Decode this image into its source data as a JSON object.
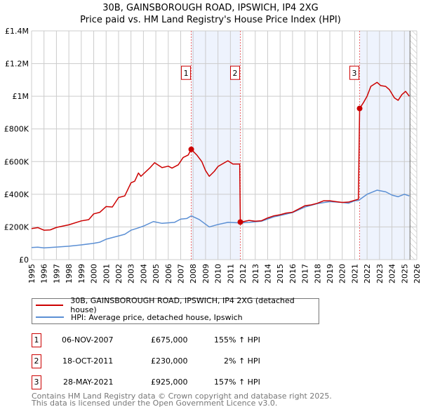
{
  "chart_data": {
    "type": "line",
    "title": "30B, GAINSBOROUGH ROAD, IPSWICH, IP4 2XG",
    "subtitle": "Price paid vs. HM Land Registry's House Price Index (HPI)",
    "xlim": [
      1995,
      2026
    ],
    "ylim": [
      0,
      1400000
    ],
    "x_ticks": [
      "1995",
      "1996",
      "1997",
      "1998",
      "1999",
      "2000",
      "2001",
      "2002",
      "2003",
      "2004",
      "2005",
      "2006",
      "2007",
      "2008",
      "2009",
      "2010",
      "2011",
      "2012",
      "2013",
      "2014",
      "2015",
      "2016",
      "2017",
      "2018",
      "2019",
      "2020",
      "2021",
      "2022",
      "2023",
      "2024",
      "2025",
      "2026"
    ],
    "y_ticks": [
      {
        "v": 0,
        "label": "£0"
      },
      {
        "v": 200000,
        "label": "£200K"
      },
      {
        "v": 400000,
        "label": "£400K"
      },
      {
        "v": 600000,
        "label": "£600K"
      },
      {
        "v": 800000,
        "label": "£800K"
      },
      {
        "v": 1000000,
        "label": "£1M"
      },
      {
        "v": 1200000,
        "label": "£1.2M"
      },
      {
        "v": 1400000,
        "label": "£1.4M"
      }
    ],
    "grid": true,
    "series": [
      {
        "name": "30B, GAINSBOROUGH ROAD, IPSWICH, IP4 2XG (detached house)",
        "color": "#cc0000",
        "points": [
          [
            1995,
            190
          ],
          [
            1995.5,
            196
          ],
          [
            1996,
            180
          ],
          [
            1996.5,
            182
          ],
          [
            1997,
            197
          ],
          [
            1998,
            213
          ],
          [
            1999,
            237
          ],
          [
            1999.6,
            245
          ],
          [
            2000,
            280
          ],
          [
            2000.5,
            290
          ],
          [
            2001,
            325
          ],
          [
            2001.5,
            322
          ],
          [
            2002,
            380
          ],
          [
            2002.5,
            390
          ],
          [
            2003,
            470
          ],
          [
            2003.3,
            480
          ],
          [
            2003.6,
            530
          ],
          [
            2003.8,
            510
          ],
          [
            2004.5,
            560
          ],
          [
            2004.9,
            593
          ],
          [
            2005.5,
            563
          ],
          [
            2006,
            572
          ],
          [
            2006.3,
            560
          ],
          [
            2006.8,
            580
          ],
          [
            2007.2,
            625
          ],
          [
            2007.6,
            640
          ],
          [
            2007.85,
            675
          ],
          [
            2008.3,
            640
          ],
          [
            2008.7,
            600
          ],
          [
            2009,
            545
          ],
          [
            2009.3,
            510
          ],
          [
            2009.7,
            540
          ],
          [
            2010,
            570
          ],
          [
            2010.5,
            592
          ],
          [
            2010.8,
            605
          ],
          [
            2011.2,
            585
          ],
          [
            2011.75,
            585
          ],
          [
            2011.8,
            230
          ],
          [
            2012,
            232
          ],
          [
            2012.5,
            240
          ],
          [
            2013,
            235
          ],
          [
            2013.5,
            238
          ],
          [
            2014,
            255
          ],
          [
            2014.5,
            268
          ],
          [
            2015,
            275
          ],
          [
            2015.5,
            285
          ],
          [
            2016,
            290
          ],
          [
            2016.5,
            310
          ],
          [
            2017,
            330
          ],
          [
            2017.5,
            335
          ],
          [
            2018,
            345
          ],
          [
            2018.5,
            360
          ],
          [
            2019,
            360
          ],
          [
            2019.5,
            355
          ],
          [
            2020,
            350
          ],
          [
            2020.5,
            352
          ],
          [
            2021.3,
            370
          ],
          [
            2021.4,
            925
          ],
          [
            2021.7,
            960
          ],
          [
            2022,
            1000
          ],
          [
            2022.3,
            1060
          ],
          [
            2022.8,
            1085
          ],
          [
            2023.1,
            1065
          ],
          [
            2023.5,
            1060
          ],
          [
            2023.8,
            1040
          ],
          [
            2024.2,
            990
          ],
          [
            2024.5,
            975
          ],
          [
            2024.8,
            1010
          ],
          [
            2025.1,
            1030
          ],
          [
            2025.4,
            1000
          ]
        ]
      },
      {
        "name": "HPI: Average price, detached house, Ipswich",
        "color": "#5b8fd4",
        "points": [
          [
            1995,
            74
          ],
          [
            1995.5,
            76
          ],
          [
            1996,
            72
          ],
          [
            1997,
            77
          ],
          [
            1998,
            82
          ],
          [
            1999,
            90
          ],
          [
            2000,
            100
          ],
          [
            2000.5,
            107
          ],
          [
            2001,
            125
          ],
          [
            2002,
            145
          ],
          [
            2002.5,
            155
          ],
          [
            2003,
            180
          ],
          [
            2003.5,
            192
          ],
          [
            2004,
            205
          ],
          [
            2004.8,
            233
          ],
          [
            2005.5,
            222
          ],
          [
            2006.5,
            228
          ],
          [
            2007,
            248
          ],
          [
            2007.5,
            252
          ],
          [
            2007.85,
            268
          ],
          [
            2008.5,
            245
          ],
          [
            2009.3,
            200
          ],
          [
            2010,
            215
          ],
          [
            2010.8,
            228
          ],
          [
            2011.8,
            225
          ],
          [
            2012.5,
            228
          ],
          [
            2013.5,
            235
          ],
          [
            2014.5,
            262
          ],
          [
            2015,
            270
          ],
          [
            2016,
            288
          ],
          [
            2017,
            322
          ],
          [
            2018,
            343
          ],
          [
            2019,
            355
          ],
          [
            2020,
            350
          ],
          [
            2020.5,
            345
          ],
          [
            2021,
            360
          ],
          [
            2021.3,
            362
          ],
          [
            2022,
            400
          ],
          [
            2022.8,
            425
          ],
          [
            2023.5,
            415
          ],
          [
            2024,
            395
          ],
          [
            2024.5,
            385
          ],
          [
            2025,
            400
          ],
          [
            2025.4,
            390
          ]
        ]
      }
    ],
    "sales": [
      {
        "id": "1",
        "date": "06-NOV-2007",
        "x": 2007.85,
        "price": "£675,000",
        "value": 675,
        "hpi": "155% ↑ HPI"
      },
      {
        "id": "2",
        "date": "18-OCT-2011",
        "x": 2011.8,
        "price": "£230,000",
        "value": 230,
        "hpi": "2% ↑ HPI"
      },
      {
        "id": "3",
        "date": "28-MAY-2021",
        "x": 2021.4,
        "price": "£925,000",
        "value": 925,
        "hpi": "157% ↑ HPI"
      }
    ],
    "value_units": "thousands GBP"
  },
  "footer": [
    "Contains HM Land Registry data © Crown copyright and database right 2025.",
    "This data is licensed under the Open Government Licence v3.0."
  ]
}
